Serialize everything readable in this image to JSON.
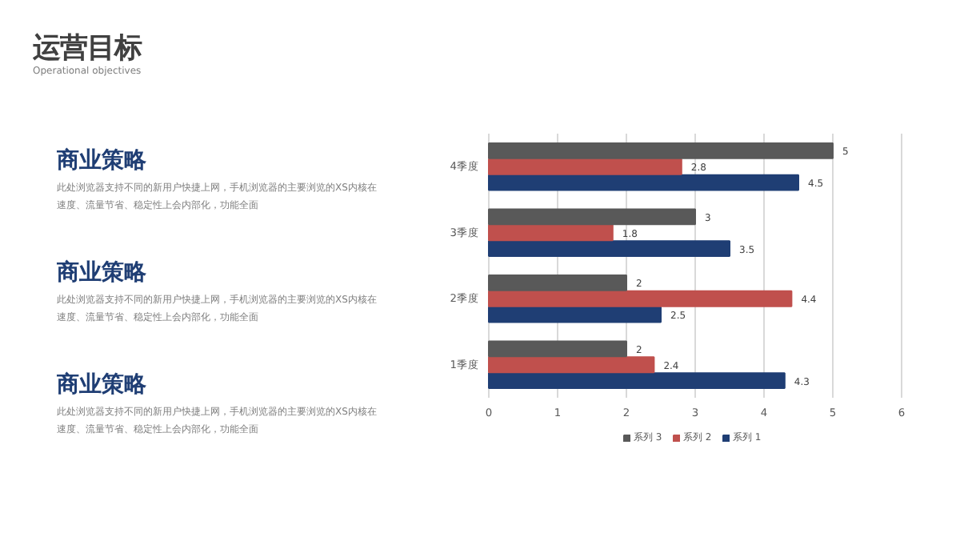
{
  "chart_data": {
    "type": "bar",
    "orientation": "horizontal",
    "title": "运营目标",
    "subtitle": "Operational objectives",
    "annotations": [
      "商业策略",
      "此处浏览器支持不同的新用户快捷上网，手机浏览器的主要浏览的XS内核在速度、流量节省、稳定性上会内部化，功能全面",
      "商业策略",
      "此处浏览器支持不同的新用户快捷上网，手机浏览器的主要浏览的XS内核在速度、流量节省、稳定性上会内部化，功能全面",
      "商业策略",
      "此处浏览器支持不同的新用户快捷上网，手机浏览器的主要浏览的XS内核在速度、流量节省、稳定性上会内部化，功能全面"
    ],
    "categories": [
      "4季度",
      "3季度",
      "2季度",
      "1季度"
    ],
    "series": [
      {
        "name": "系列 1",
        "color": "#1f3e74",
        "values": [
          4.5,
          3.5,
          2.5,
          4.3
        ]
      },
      {
        "name": "系列 2",
        "color": "#c0504d",
        "values": [
          2.8,
          1.8,
          4.4,
          2.4
        ]
      },
      {
        "name": "系列 3",
        "color": "#595959",
        "values": [
          5,
          3,
          2,
          2
        ]
      }
    ],
    "xlim": [
      0,
      6
    ],
    "xticks": [
      0,
      1,
      2,
      3,
      4,
      5,
      6
    ],
    "grid": "x",
    "legend": "bottom",
    "data_labels": true
  }
}
